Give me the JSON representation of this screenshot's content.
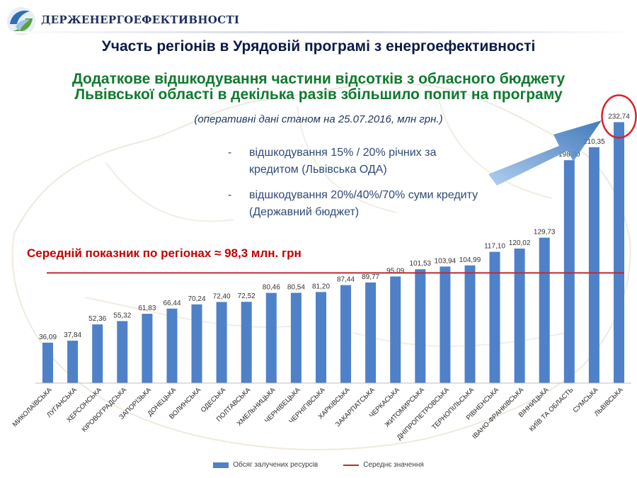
{
  "header": {
    "org_name": "ДЕРЖЕНЕРГОЕФЕКТИВНОСТІ",
    "logo_icon": "globe-swirl-logo"
  },
  "title": "Участь регіонів в Урядовій програмі з енергоефективності",
  "subtitle_lines": [
    "Додаткове відшкодування частини відсотків з обласного бюджету",
    "Львівської області в декілька разів збільшило попит на програму"
  ],
  "note": "(оперативні дані станом на 25.07.2016, млн грн.)",
  "bullets": [
    {
      "dash": "-",
      "text": "відшкодування 15% / 20% річних за кредитом (Львівська ОДА)"
    },
    {
      "dash": "-",
      "text": "відшкодування 20%/40%/70% суми кредиту (Державний бюджет)"
    }
  ],
  "average_label": "Середній показник по регіонах ≈ 98,3 млн. грн",
  "legend": {
    "bar_label": "Обсяг залучених ресурсів",
    "line_label": "Середнє значення"
  },
  "colors": {
    "bar": "#4f81c8",
    "average_line": "#c0282e",
    "highlight_ellipse": "#e0202a",
    "arrow": "#3a7ac8"
  },
  "chart_data": {
    "type": "bar",
    "categories": [
      "МИКОЛАЇВСЬКА",
      "ЛУГАНСЬКА",
      "ХЕРСОНСЬКА",
      "КІРОВОГРАДСЬКА",
      "ЗАПОРІЗЬКА",
      "ДОНЕЦЬКА",
      "ВОЛИНСЬКА",
      "ОДЕСЬКА",
      "ПОЛТАВСЬКА",
      "ХМЕЛЬНИЦЬКА",
      "ЧЕРНІВЕЦЬКА",
      "ЧЕРНІГІВСЬКА",
      "ХАРКІВСЬКА",
      "ЗАКАРПАТСЬКА",
      "ЧЕРКАСЬКА",
      "ЖИТОМИРСЬКА",
      "ДНІПРОПЕТРОВСЬКА",
      "ТЕРНОПІЛЬСЬКА",
      "РІВНЕНСЬКА",
      "ІВАНО-ФРАНКІВСЬКА",
      "ВІННИЦЬКА",
      "КИЇВ ТА ОБЛАСТЬ",
      "СУМСЬКА",
      "ЛЬВІВСЬКА"
    ],
    "values": [
      36.09,
      37.84,
      52.36,
      55.32,
      61.83,
      66.44,
      70.24,
      72.4,
      72.52,
      80.46,
      80.54,
      81.2,
      87.44,
      89.77,
      95.09,
      101.53,
      103.94,
      104.99,
      117.1,
      120.02,
      129.73,
      198.8,
      210.35,
      232.74
    ],
    "value_labels": [
      "36,09",
      "37,84",
      "52,36",
      "55,32",
      "61,83",
      "66,44",
      "70,24",
      "72,40",
      "72,52",
      "80,46",
      "80,54",
      "81,20",
      "87,44",
      "89,77",
      "95,09",
      "101,53",
      "103,94",
      "104,99",
      "117,10",
      "120,02",
      "129,73",
      "198,80",
      "210,35",
      "232,74"
    ],
    "average_value": 98.3,
    "ylim": [
      0,
      240
    ],
    "grid": false,
    "legend_position": "bottom",
    "highlighted_category": "ЛЬВІВСЬКА"
  }
}
